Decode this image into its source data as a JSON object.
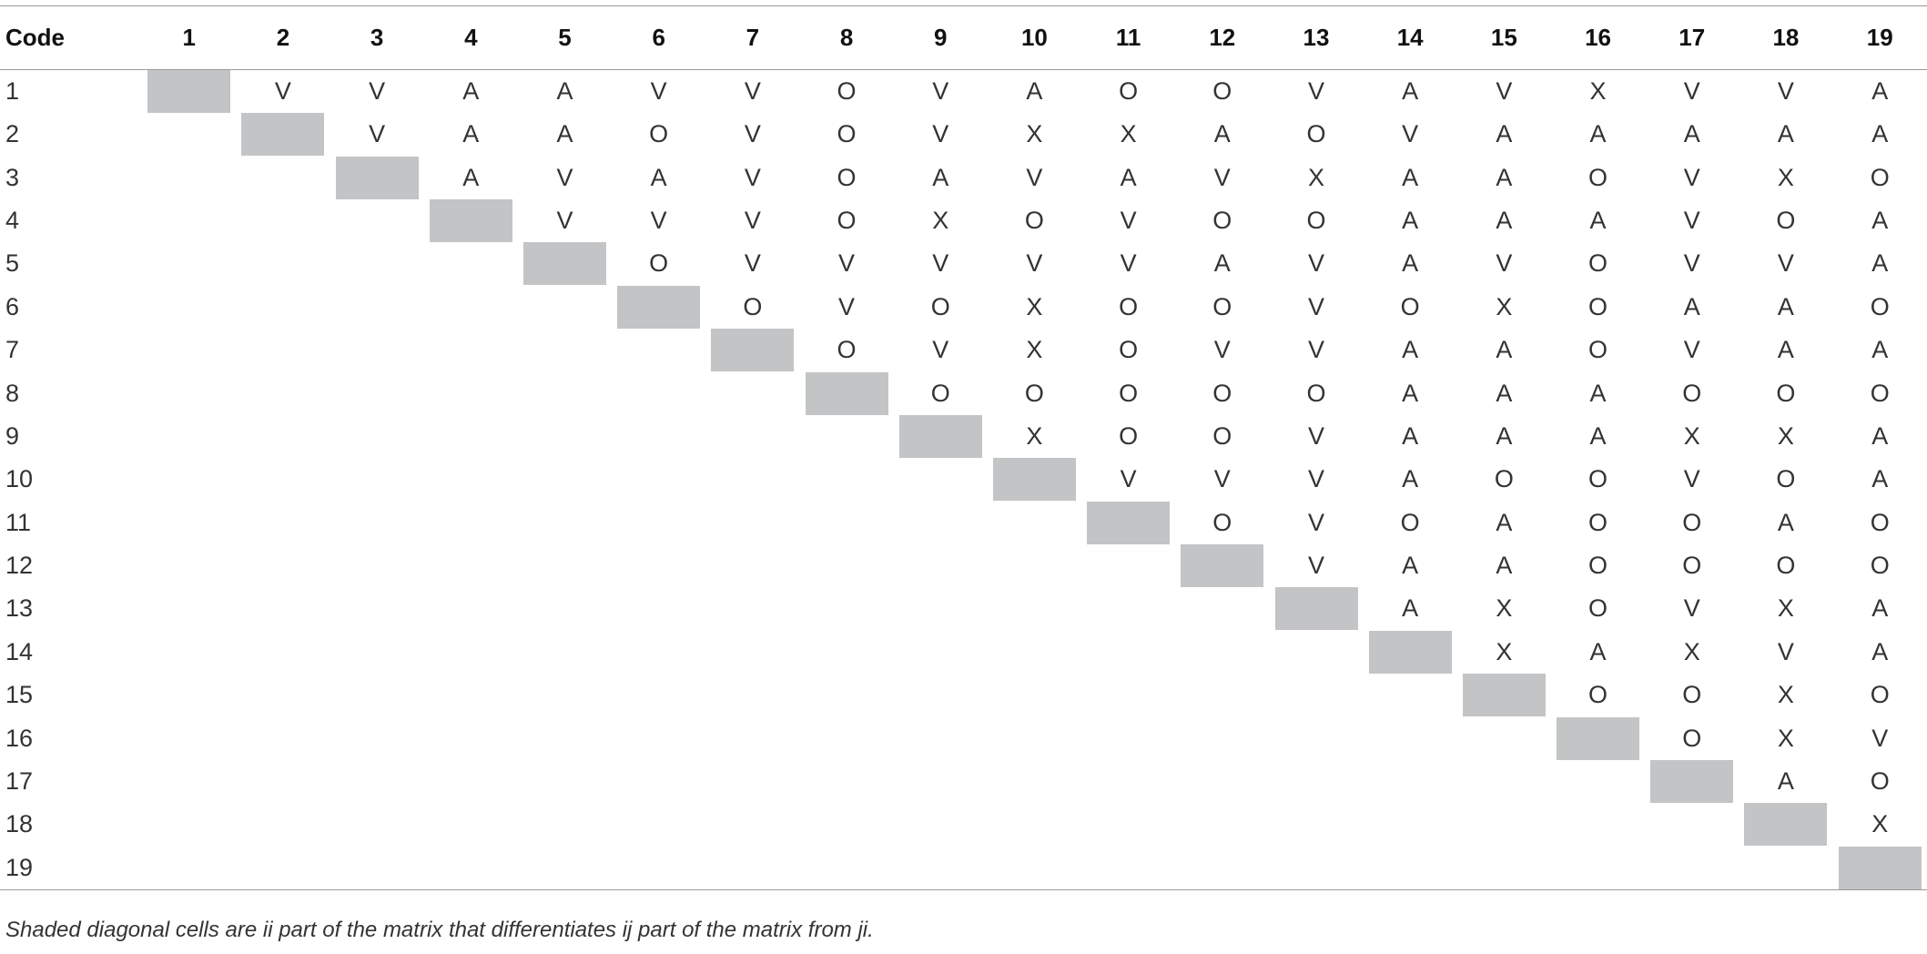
{
  "table": {
    "corner_header": "Code",
    "column_headers": [
      "1",
      "2",
      "3",
      "4",
      "5",
      "6",
      "7",
      "8",
      "9",
      "10",
      "11",
      "12",
      "13",
      "14",
      "15",
      "16",
      "17",
      "18",
      "19"
    ],
    "rows": [
      {
        "code": "1",
        "cells": [
          "V",
          "V",
          "A",
          "A",
          "V",
          "V",
          "O",
          "V",
          "A",
          "O",
          "O",
          "V",
          "A",
          "V",
          "X",
          "V",
          "V",
          "A"
        ]
      },
      {
        "code": "2",
        "cells": [
          "V",
          "A",
          "A",
          "O",
          "V",
          "O",
          "V",
          "X",
          "X",
          "A",
          "O",
          "V",
          "A",
          "A",
          "A",
          "A",
          "A"
        ]
      },
      {
        "code": "3",
        "cells": [
          "A",
          "V",
          "A",
          "V",
          "O",
          "A",
          "V",
          "A",
          "V",
          "X",
          "A",
          "A",
          "O",
          "V",
          "X",
          "O"
        ]
      },
      {
        "code": "4",
        "cells": [
          "V",
          "V",
          "V",
          "O",
          "X",
          "O",
          "V",
          "O",
          "O",
          "A",
          "A",
          "A",
          "V",
          "O",
          "A"
        ]
      },
      {
        "code": "5",
        "cells": [
          "O",
          "V",
          "V",
          "V",
          "V",
          "V",
          "A",
          "V",
          "A",
          "V",
          "O",
          "V",
          "V",
          "A"
        ]
      },
      {
        "code": "6",
        "cells": [
          "O",
          "V",
          "O",
          "X",
          "O",
          "O",
          "V",
          "O",
          "X",
          "O",
          "A",
          "A",
          "O"
        ]
      },
      {
        "code": "7",
        "cells": [
          "O",
          "V",
          "X",
          "O",
          "V",
          "V",
          "A",
          "A",
          "O",
          "V",
          "A",
          "A"
        ]
      },
      {
        "code": "8",
        "cells": [
          "O",
          "O",
          "O",
          "O",
          "O",
          "A",
          "A",
          "A",
          "O",
          "O",
          "O"
        ]
      },
      {
        "code": "9",
        "cells": [
          "X",
          "O",
          "O",
          "V",
          "A",
          "A",
          "A",
          "X",
          "X",
          "A"
        ]
      },
      {
        "code": "10",
        "cells": [
          "V",
          "V",
          "V",
          "A",
          "O",
          "O",
          "V",
          "O",
          "A"
        ]
      },
      {
        "code": "11",
        "cells": [
          "O",
          "V",
          "O",
          "A",
          "O",
          "O",
          "A",
          "O"
        ]
      },
      {
        "code": "12",
        "cells": [
          "V",
          "A",
          "A",
          "O",
          "O",
          "O",
          "O"
        ]
      },
      {
        "code": "13",
        "cells": [
          "A",
          "X",
          "O",
          "V",
          "X",
          "A"
        ]
      },
      {
        "code": "14",
        "cells": [
          "X",
          "A",
          "X",
          "V",
          "A"
        ]
      },
      {
        "code": "15",
        "cells": [
          "O",
          "O",
          "X",
          "O"
        ]
      },
      {
        "code": "16",
        "cells": [
          "O",
          "X",
          "V"
        ]
      },
      {
        "code": "17",
        "cells": [
          "A",
          "O"
        ]
      },
      {
        "code": "18",
        "cells": [
          "X"
        ]
      },
      {
        "code": "19",
        "cells": []
      }
    ]
  },
  "footnote": "Shaded diagonal cells are ii part of the matrix that differentiates ij part of the matrix from ji.",
  "colors": {
    "diagonal_shade": "#c3c4c6",
    "rule_lines": "#9a9a9a",
    "text": "#333333"
  }
}
